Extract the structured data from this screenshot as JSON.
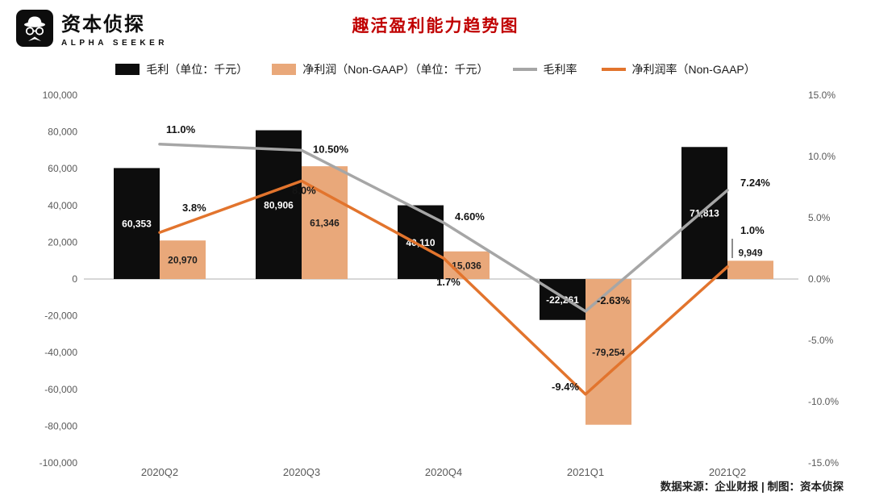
{
  "brand": {
    "name": "资本侦探",
    "subtitle": "ALPHA SEEKER"
  },
  "title": "趣活盈利能力趋势图",
  "source_note": "数据来源：企业财报 | 制图：资本侦探",
  "legend": {
    "items": [
      {
        "label": "毛利（单位：千元）",
        "type": "bar",
        "color": "#0d0d0d"
      },
      {
        "label": "净利润（Non-GAAP）（单位：千元）",
        "type": "bar",
        "color": "#e9a87a"
      },
      {
        "label": "毛利率",
        "type": "line",
        "color": "#a6a6a6"
      },
      {
        "label": "净利润率（Non-GAAP）",
        "type": "line",
        "color": "#e2742d"
      }
    ]
  },
  "axes": {
    "left_ticks": [
      "100,000",
      "80,000",
      "60,000",
      "40,000",
      "20,000",
      "0",
      "-20,000",
      "-40,000",
      "-60,000",
      "-80,000",
      "-100,000"
    ],
    "right_ticks": [
      "15.0%",
      "10.0%",
      "5.0%",
      "0.0%",
      "-5.0%",
      "-10.0%",
      "-15.0%"
    ],
    "left_range": [
      -100000,
      100000
    ],
    "right_range": [
      -15,
      15
    ]
  },
  "chart_data": {
    "type": "bar+line",
    "title": "趣活盈利能力趋势图",
    "categories": [
      "2020Q2",
      "2020Q3",
      "2020Q4",
      "2021Q1",
      "2021Q2"
    ],
    "ylim_left": [
      -100000,
      100000
    ],
    "ylim_right": [
      -15,
      15
    ],
    "grid": "zero-line-only",
    "legend_position": "top",
    "series": [
      {
        "name": "毛利（单位：千元）",
        "type": "bar",
        "axis": "left",
        "color": "#0d0d0d",
        "values": [
          60353,
          80906,
          40110,
          -22261,
          71813
        ],
        "labels": [
          "60,353",
          "80,906",
          "40,110",
          "-22,261",
          "71,813"
        ]
      },
      {
        "name": "净利润（Non-GAAP）（单位：千元）",
        "type": "bar",
        "axis": "left",
        "color": "#e9a87a",
        "values": [
          20970,
          61346,
          15036,
          -79254,
          9949
        ],
        "labels": [
          "20,970",
          "61,346",
          "15,036",
          "-79,254",
          "9,949"
        ]
      },
      {
        "name": "毛利率",
        "type": "line",
        "axis": "right",
        "color": "#a6a6a6",
        "values": [
          11.0,
          10.5,
          4.6,
          -2.63,
          7.24
        ],
        "labels": [
          "11.0%",
          "10.50%",
          "4.60%",
          "-2.63%",
          "7.24%"
        ]
      },
      {
        "name": "净利润率（Non-GAAP）",
        "type": "line",
        "axis": "right",
        "color": "#e2742d",
        "values": [
          3.8,
          8.0,
          1.7,
          -9.4,
          1.0
        ],
        "labels": [
          "3.8%",
          "8.0%",
          "1.7%",
          "-9.4%",
          "1.0%"
        ]
      }
    ]
  }
}
